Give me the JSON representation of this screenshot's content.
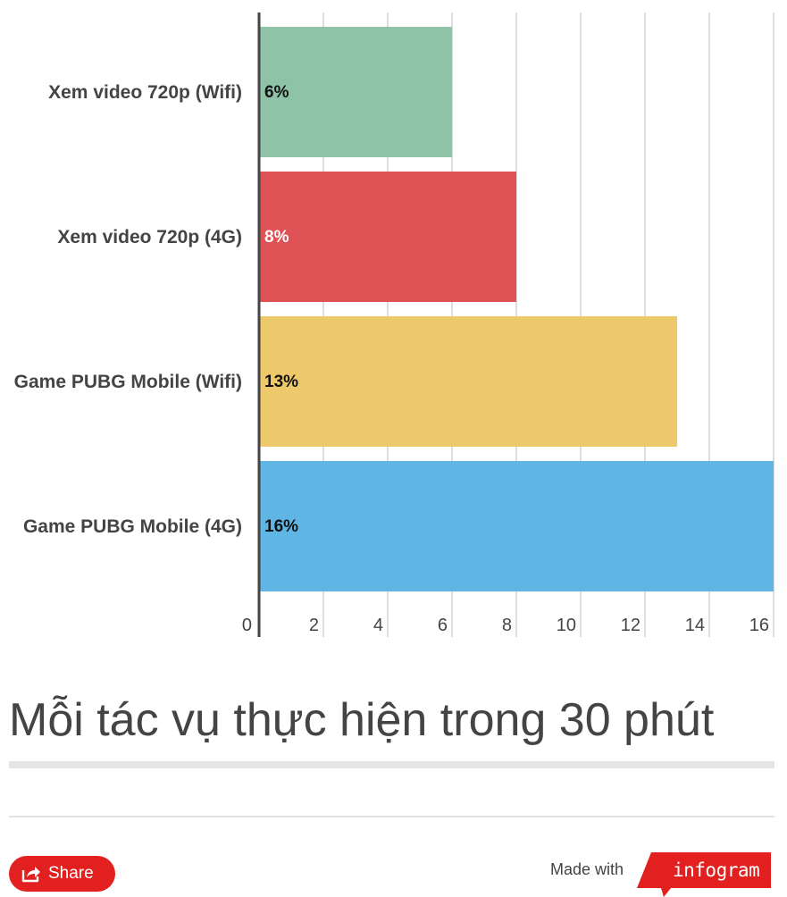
{
  "chart_data": {
    "type": "bar",
    "orientation": "horizontal",
    "categories": [
      "Xem video 720p (Wifi)",
      "Xem video 720p (4G)",
      "Game PUBG Mobile (Wifi)",
      "Game PUBG Mobile (4G)"
    ],
    "values": [
      6,
      8,
      13,
      16
    ],
    "value_labels": [
      "6%",
      "8%",
      "13%",
      "16%"
    ],
    "colors": [
      "#8fc3a8",
      "#de5256",
      "#edc96b",
      "#5fb6e4"
    ],
    "value_label_colors": [
      "#111111",
      "#ffffff",
      "#111111",
      "#111111"
    ],
    "xlim": [
      0,
      16
    ],
    "xticks": [
      "0",
      "2",
      "4",
      "6",
      "8",
      "10",
      "12",
      "14",
      "16"
    ],
    "grid": true,
    "legend": "none",
    "title": "",
    "xlabel": "",
    "ylabel": ""
  },
  "caption": "Mỗi tác vụ thực hiện trong 30 phút",
  "footer": {
    "share_label": "Share",
    "made_with": "Made with",
    "brand": "infogram",
    "share_icon": "share-arrow-icon"
  },
  "colors": {
    "brand_red": "#e2201f",
    "axis": "#444444",
    "grid": "#dddddd"
  }
}
